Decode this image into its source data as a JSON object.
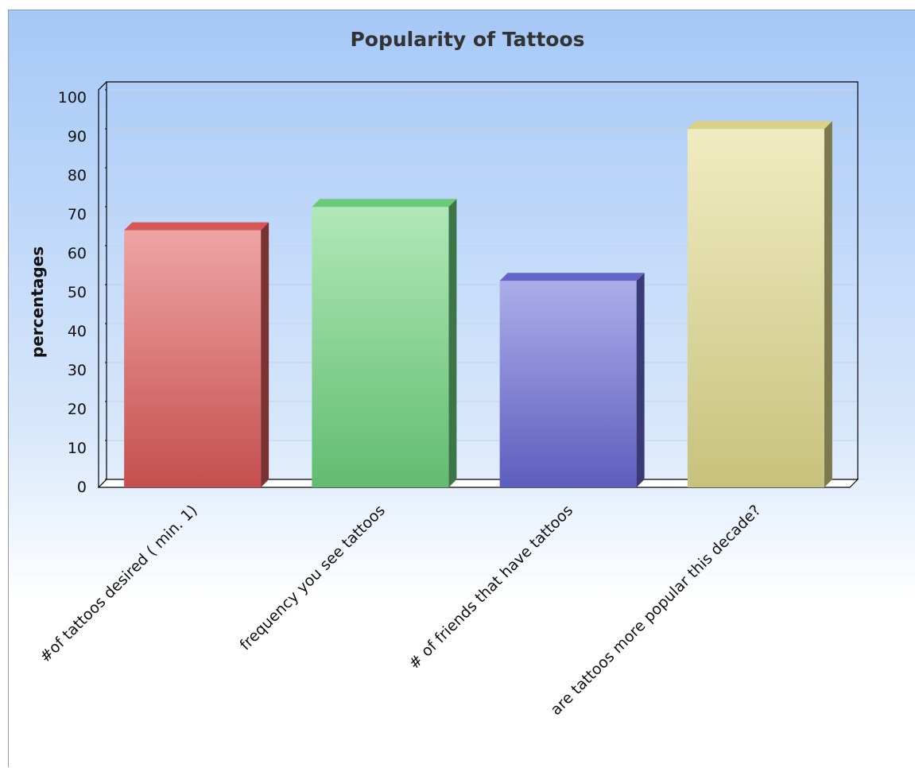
{
  "chart_data": {
    "type": "bar",
    "title": "Popularity of Tattoos",
    "xlabel": "",
    "ylabel": "percentages",
    "ylim": [
      0,
      100
    ],
    "yticks": [
      0,
      10,
      20,
      30,
      40,
      50,
      60,
      70,
      80,
      90,
      100
    ],
    "grid": true,
    "legend": "none",
    "style": "3d",
    "categories": [
      "#of tattoos desired ( min. 1)",
      "frequency you see tattoos",
      "# of friends that have tattoos",
      "are tattoos more popular this decade?"
    ],
    "values": [
      66,
      72,
      53,
      92
    ],
    "colors": [
      "#e05a5a",
      "#6fd67f",
      "#6a6ad8",
      "#e3dc8e"
    ]
  }
}
